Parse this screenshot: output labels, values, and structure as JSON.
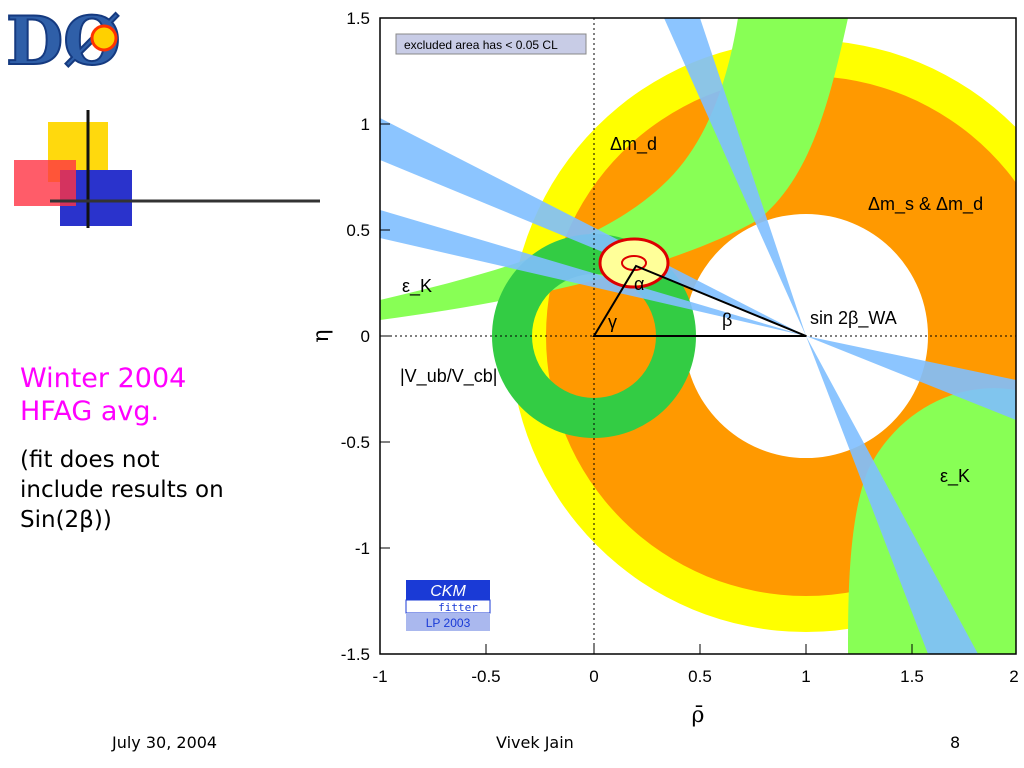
{
  "slide": {
    "caption_title": "Winter 2004\nHFAG avg.",
    "caption_note": "(fit does not\ninclude results on\nSin(2β))",
    "logo_text": "DØ",
    "footer": {
      "date": "July 30, 2004",
      "author": "Vivek Jain",
      "page": "8"
    }
  },
  "chart_data": {
    "type": "scatter",
    "title": "",
    "xlabel": "ρ̄",
    "ylabel": "η",
    "xlim": [
      -1,
      2
    ],
    "ylim": [
      -1.5,
      1.5
    ],
    "x_ticks": [
      "-1",
      "-0.5",
      "0",
      "0.5",
      "1",
      "1.5",
      "2"
    ],
    "y_ticks": [
      "1.5",
      "1",
      "0.5",
      "0",
      "-0.5",
      "-1",
      "-1.5"
    ],
    "legend_note": "excluded area has < 0.05 CL",
    "badge": {
      "line1": "CKM",
      "line2": "fitter",
      "line3": "LP 2003"
    },
    "region_labels": {
      "dmd": "Δm_d",
      "dms_dmd": "Δm_s & Δm_d",
      "epsK": "ε_K",
      "vub": "|V_ub/V_cb|",
      "sin2b": "sin 2β_WA",
      "alpha": "α",
      "beta": "β",
      "gamma": "γ"
    },
    "triangle_apex": {
      "rho": 0.2,
      "eta": 0.33
    },
    "triangle_vertices": [
      [
        0,
        0
      ],
      [
        1,
        0
      ],
      [
        0.2,
        0.33
      ]
    ],
    "fit_contour_center": {
      "rho": 0.19,
      "eta": 0.35
    },
    "colors": {
      "dmd_band": "#ffff00",
      "dms_band": "#ff9900",
      "epsK_band": "#88ff55",
      "vub_band": "#33cc44",
      "sin2b_band": "#7fbfff",
      "contour": "#dd0000",
      "caption": "#ff00ff"
    }
  }
}
